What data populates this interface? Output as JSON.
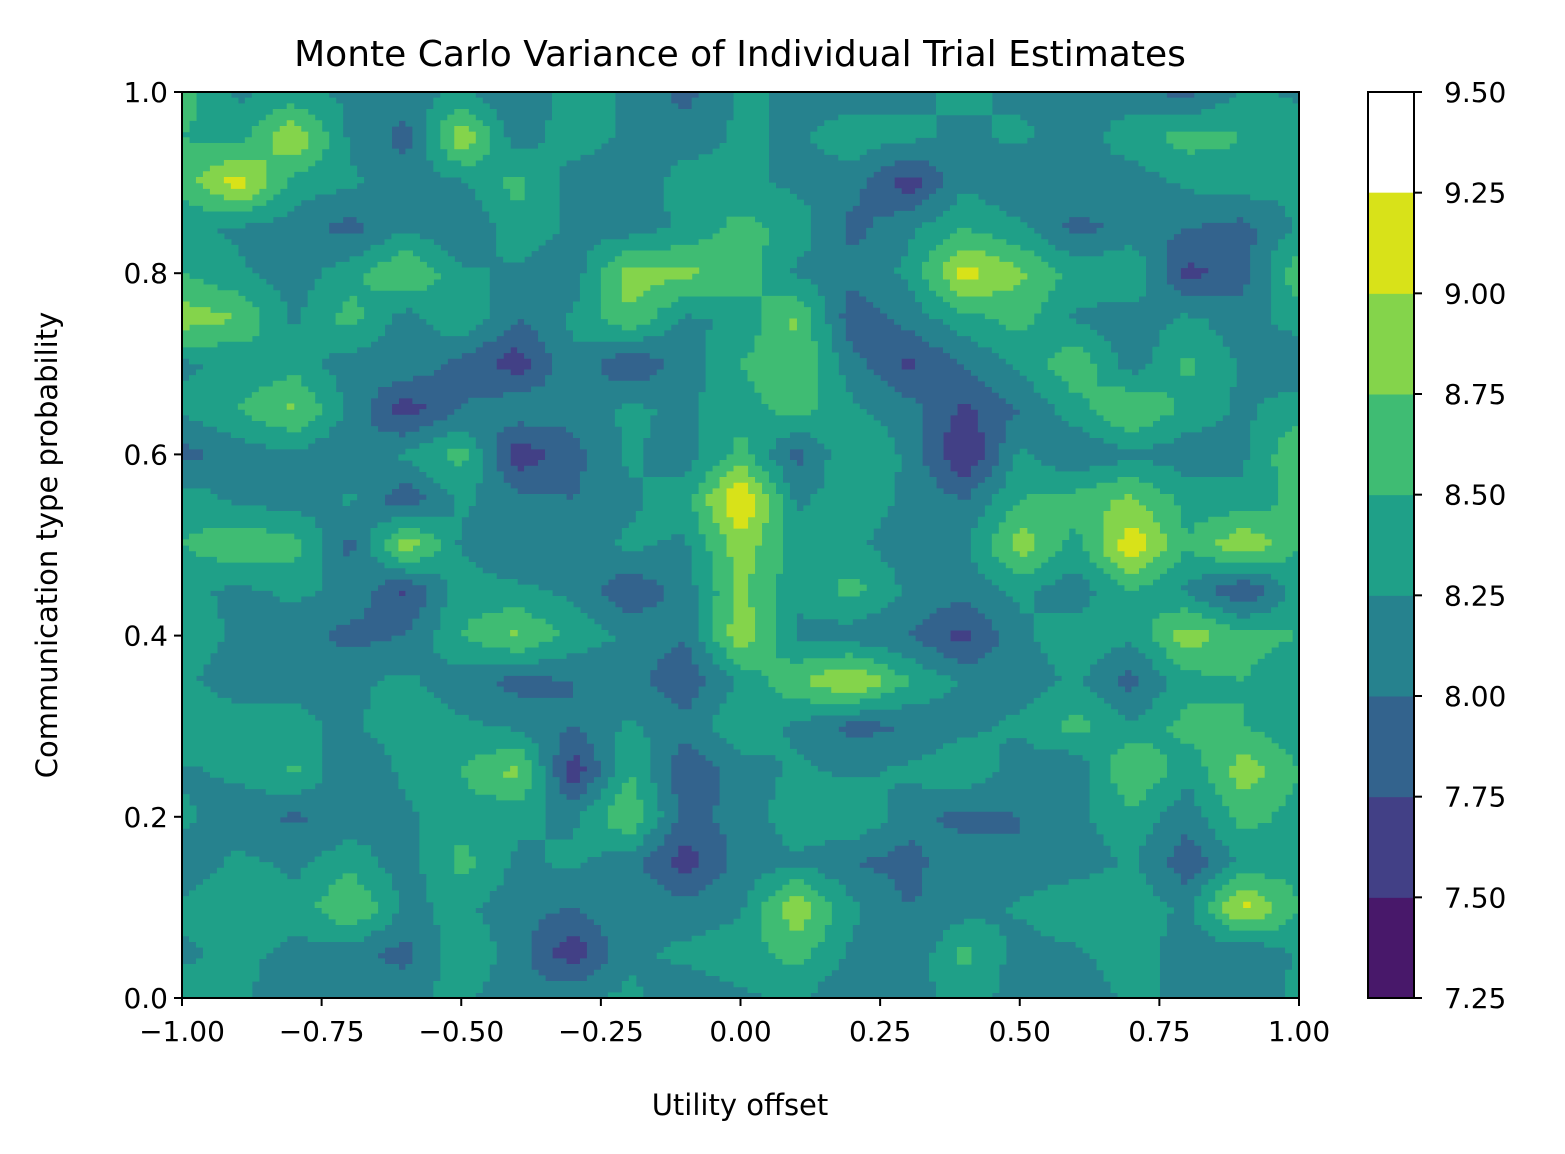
{
  "chart_data": {
    "type": "heatmap",
    "subtype": "filled-contour",
    "title": "Monte Carlo Variance of Individual Trial Estimates",
    "xlabel": "Utility offset",
    "ylabel": "Communication type probability",
    "xlim": [
      -1.0,
      1.0
    ],
    "ylim": [
      0.0,
      1.0
    ],
    "x_tick_labels": [
      "−1.00",
      "−0.75",
      "−0.50",
      "−0.25",
      "0.00",
      "0.25",
      "0.50",
      "0.75",
      "1.00"
    ],
    "y_tick_labels": [
      "0.0",
      "0.2",
      "0.4",
      "0.6",
      "0.8",
      "1.0"
    ],
    "colorbar": {
      "levels": [
        7.25,
        7.5,
        7.75,
        8.0,
        8.25,
        8.5,
        8.75,
        9.0,
        9.25,
        9.5
      ],
      "tick_labels": [
        "7.25",
        "7.50",
        "7.75",
        "8.00",
        "8.25",
        "8.50",
        "8.75",
        "9.00",
        "9.25",
        "9.50"
      ],
      "colors": [
        "#48186a",
        "#424086",
        "#33638d",
        "#26828e",
        "#1fa088",
        "#3fbc73",
        "#84d44b",
        "#d8e219"
      ]
    },
    "grid": false,
    "x": [
      -1.0,
      -0.9,
      -0.8,
      -0.7,
      -0.6,
      -0.5,
      -0.4,
      -0.3,
      -0.2,
      -0.1,
      0.0,
      0.1,
      0.2,
      0.3,
      0.4,
      0.5,
      0.6,
      0.7,
      0.8,
      0.9,
      1.0
    ],
    "y": [
      0.0,
      0.05,
      0.1,
      0.15,
      0.2,
      0.25,
      0.3,
      0.35,
      0.4,
      0.45,
      0.5,
      0.55,
      0.6,
      0.65,
      0.7,
      0.75,
      0.8,
      0.85,
      0.9,
      0.95,
      1.0
    ],
    "z": [
      [
        8.4,
        8.3,
        8.1,
        8.0,
        8.2,
        8.3,
        8.1,
        8.2,
        8.3,
        8.1,
        8.2,
        8.3,
        8.0,
        8.2,
        8.3,
        8.2,
        8.1,
        8.3,
        8.2,
        8.1,
        8.3
      ],
      [
        8.2,
        8.3,
        8.2,
        8.1,
        7.9,
        8.5,
        8.1,
        7.55,
        8.2,
        8.3,
        8.4,
        8.6,
        8.2,
        8.0,
        8.6,
        8.1,
        8.2,
        8.4,
        8.1,
        8.0,
        8.3
      ],
      [
        8.3,
        8.4,
        8.3,
        8.8,
        8.2,
        8.3,
        8.1,
        8.0,
        8.2,
        8.1,
        8.2,
        8.95,
        8.3,
        8.0,
        8.1,
        8.3,
        8.5,
        8.4,
        8.2,
        9.1,
        8.5
      ],
      [
        8.1,
        8.3,
        8.2,
        8.4,
        8.1,
        8.6,
        8.2,
        8.3,
        8.1,
        7.6,
        8.1,
        8.2,
        8.0,
        7.9,
        8.2,
        8.0,
        8.1,
        8.3,
        7.8,
        8.3,
        8.4
      ],
      [
        8.3,
        8.1,
        7.95,
        8.1,
        8.2,
        8.4,
        8.3,
        8.2,
        8.75,
        7.9,
        8.1,
        8.4,
        8.5,
        8.1,
        7.9,
        8.0,
        8.2,
        8.4,
        8.1,
        8.6,
        8.4
      ],
      [
        8.2,
        8.3,
        8.55,
        8.0,
        8.3,
        8.5,
        8.85,
        7.55,
        8.5,
        7.8,
        8.1,
        8.3,
        8.2,
        8.3,
        8.45,
        8.1,
        8.0,
        8.8,
        8.3,
        8.9,
        8.5
      ],
      [
        8.5,
        8.4,
        8.3,
        8.2,
        8.4,
        8.3,
        8.2,
        8.0,
        8.3,
        8.1,
        8.45,
        8.2,
        7.9,
        8.0,
        8.2,
        8.3,
        8.6,
        8.3,
        8.6,
        8.5,
        8.3
      ],
      [
        8.3,
        8.1,
        8.2,
        8.2,
        8.3,
        8.1,
        7.9,
        8.0,
        8.1,
        7.8,
        8.3,
        8.7,
        9.05,
        8.5,
        8.2,
        8.1,
        8.3,
        7.9,
        8.4,
        8.5,
        8.3
      ],
      [
        8.4,
        8.2,
        8.1,
        7.9,
        8.0,
        8.5,
        8.8,
        8.4,
        8.2,
        8.0,
        8.95,
        8.2,
        8.1,
        8.0,
        7.65,
        8.2,
        8.4,
        8.3,
        8.9,
        8.6,
        8.5
      ],
      [
        8.3,
        8.2,
        8.3,
        8.2,
        7.7,
        8.4,
        8.3,
        8.2,
        7.8,
        8.1,
        8.8,
        8.3,
        8.6,
        8.2,
        8.1,
        8.3,
        8.1,
        8.5,
        8.2,
        7.7,
        8.4
      ],
      [
        8.5,
        8.7,
        8.6,
        7.9,
        8.95,
        8.2,
        8.0,
        8.1,
        8.3,
        8.2,
        8.9,
        8.4,
        8.3,
        8.1,
        8.2,
        8.9,
        8.4,
        9.2,
        8.5,
        9.0,
        8.5
      ],
      [
        8.4,
        8.2,
        8.1,
        8.3,
        7.8,
        8.3,
        8.1,
        8.0,
        8.2,
        8.4,
        9.3,
        8.2,
        8.4,
        8.2,
        8.0,
        8.5,
        8.6,
        8.8,
        8.4,
        8.3,
        8.6
      ],
      [
        7.9,
        8.1,
        8.2,
        8.0,
        8.3,
        8.6,
        7.55,
        7.9,
        8.3,
        8.1,
        8.6,
        7.9,
        8.5,
        8.2,
        7.45,
        8.3,
        8.0,
        8.2,
        8.1,
        8.2,
        8.75
      ],
      [
        8.3,
        8.5,
        8.8,
        8.2,
        7.6,
        8.0,
        8.2,
        8.1,
        8.3,
        8.2,
        8.4,
        8.6,
        8.3,
        8.1,
        7.7,
        8.0,
        8.4,
        8.8,
        8.4,
        8.2,
        8.4
      ],
      [
        8.2,
        8.3,
        8.4,
        8.1,
        8.2,
        7.9,
        7.6,
        8.2,
        7.75,
        8.1,
        8.5,
        8.7,
        8.1,
        7.7,
        8.0,
        8.3,
        8.7,
        8.1,
        8.55,
        8.2,
        8.0
      ],
      [
        8.9,
        8.75,
        8.2,
        8.6,
        8.1,
        8.5,
        8.0,
        8.3,
        8.7,
        8.2,
        8.3,
        8.8,
        7.8,
        8.1,
        8.4,
        8.6,
        8.2,
        8.1,
        8.3,
        8.1,
        8.4
      ],
      [
        8.5,
        8.3,
        8.1,
        8.4,
        8.8,
        8.3,
        8.2,
        8.1,
        8.9,
        8.8,
        8.7,
        8.2,
        8.1,
        8.3,
        9.1,
        8.8,
        8.4,
        8.5,
        7.65,
        7.9,
        8.7
      ],
      [
        8.3,
        8.2,
        8.1,
        7.9,
        8.2,
        8.0,
        8.4,
        8.2,
        8.1,
        8.3,
        8.6,
        8.4,
        7.9,
        8.2,
        8.5,
        8.3,
        7.9,
        8.1,
        8.0,
        7.9,
        8.3
      ],
      [
        8.6,
        9.15,
        8.4,
        8.3,
        8.1,
        8.2,
        8.6,
        8.1,
        8.0,
        8.4,
        8.3,
        8.2,
        8.1,
        7.6,
        8.2,
        8.0,
        8.2,
        8.1,
        8.3,
        8.4,
        8.3
      ],
      [
        8.5,
        8.4,
        9.0,
        8.2,
        7.9,
        8.95,
        8.1,
        8.4,
        8.2,
        8.1,
        8.3,
        8.2,
        8.4,
        8.3,
        8.2,
        8.3,
        8.1,
        8.4,
        8.6,
        8.5,
        8.4
      ],
      [
        8.6,
        8.2,
        8.3,
        8.2,
        8.1,
        8.3,
        8.0,
        8.4,
        8.2,
        7.9,
        8.3,
        8.2,
        8.1,
        8.2,
        8.3,
        8.2,
        8.2,
        8.1,
        7.9,
        8.3,
        8.2
      ]
    ]
  }
}
